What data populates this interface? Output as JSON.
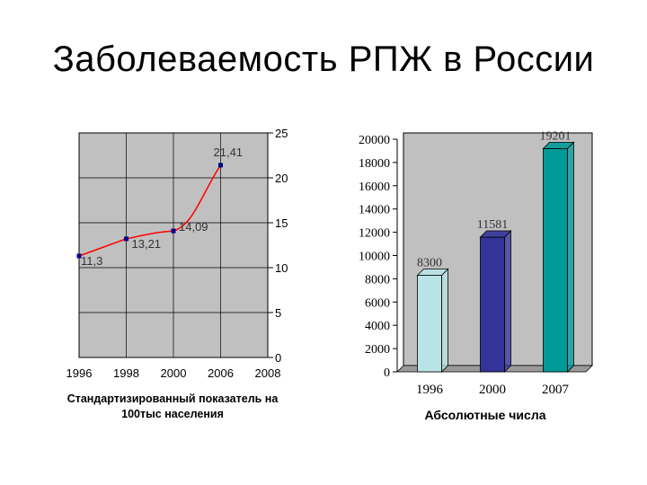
{
  "title": "Заболеваемость РПЖ в России",
  "chart_data": [
    {
      "type": "line",
      "categories": [
        "1996",
        "1998",
        "2000",
        "2006",
        "2008"
      ],
      "points": [
        {
          "x": "1996",
          "y": 11.3,
          "label": "11,3"
        },
        {
          "x": "1998",
          "y": 13.21,
          "label": "13,21"
        },
        {
          "x": "2000",
          "y": 14.09,
          "label": "14,09"
        },
        {
          "x": "2006",
          "y": 21.41,
          "label": "21,41"
        }
      ],
      "yticks": [
        "0",
        "5",
        "10",
        "15",
        "20",
        "25"
      ],
      "ylim": [
        0,
        25
      ],
      "y_axis_side": "right",
      "line_color": "#ff0000",
      "marker_color": "#00008b",
      "plot_bg": "#c0c0c0",
      "grid": true,
      "caption_lines": [
        "Стандартизированный показатель на",
        "100тыс населения"
      ]
    },
    {
      "type": "bar",
      "categories": [
        "1996",
        "2000",
        "2007"
      ],
      "values": [
        8300,
        11581,
        19201
      ],
      "labels": [
        "8300",
        "11581",
        "19201"
      ],
      "colors": [
        "#b9e3e6",
        "#333399",
        "#009999"
      ],
      "yticks": [
        "0",
        "2000",
        "4000",
        "6000",
        "8000",
        "10000",
        "12000",
        "14000",
        "16000",
        "18000",
        "20000"
      ],
      "ylim": [
        0,
        20000
      ],
      "plot_bg": "#c0c0c0",
      "caption": "Абсолютные числа"
    }
  ]
}
